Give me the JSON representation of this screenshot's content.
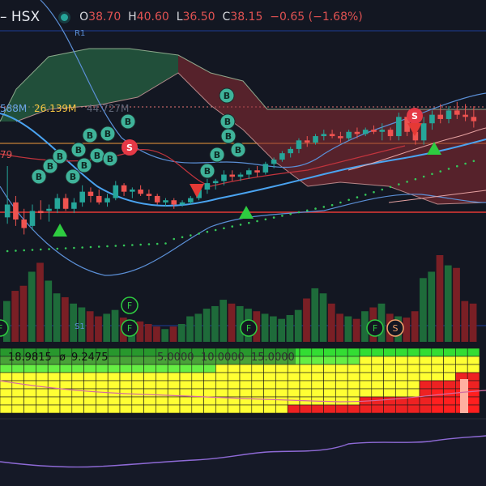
{
  "header": {
    "symbol": "– HSX",
    "o_key": "O",
    "o_val": "38.70",
    "h_key": "H",
    "h_val": "40.60",
    "l_key": "L",
    "l_val": "36.50",
    "c_key": "C",
    "c_val": "38.15",
    "change": "−0.65 (−1.68%)"
  },
  "labels": {
    "r1": "R1",
    "s1": "S1",
    "vol_a": "588M",
    "vol_b": "26.139M",
    "vol_c": "44.727M",
    "side_79": "79"
  },
  "indicator": {
    "v1": "18.9815",
    "v2_prefix": "ø",
    "v2": "9.2475",
    "levels": [
      "5.0000",
      "10.0000",
      "15.0000"
    ]
  },
  "markers": {
    "buy": "B",
    "sell": "S",
    "f": "F"
  },
  "chart_data": {
    "type": "candlestick",
    "title": "– HSX",
    "ohlc": [
      [
        36.2,
        38.6,
        35.9,
        36.8
      ],
      [
        36.9,
        37.2,
        35.8,
        36.1
      ],
      [
        36.1,
        36.6,
        35.4,
        35.7
      ],
      [
        35.8,
        36.8,
        35.6,
        36.5
      ],
      [
        36.5,
        37.0,
        36.1,
        36.4
      ],
      [
        36.5,
        36.8,
        36.0,
        36.6
      ],
      [
        36.6,
        37.3,
        36.4,
        37.1
      ],
      [
        37.1,
        37.3,
        36.5,
        36.6
      ],
      [
        36.6,
        37.1,
        36.4,
        36.9
      ],
      [
        36.9,
        37.7,
        36.7,
        37.4
      ],
      [
        37.4,
        37.6,
        36.9,
        37.2
      ],
      [
        37.2,
        37.5,
        36.8,
        36.9
      ],
      [
        36.9,
        37.3,
        36.7,
        37.1
      ],
      [
        37.1,
        37.9,
        37.0,
        37.7
      ],
      [
        37.7,
        37.8,
        37.2,
        37.4
      ],
      [
        37.4,
        37.6,
        37.1,
        37.5
      ],
      [
        37.5,
        37.7,
        37.2,
        37.3
      ],
      [
        37.3,
        37.5,
        37.0,
        37.2
      ],
      [
        37.2,
        37.3,
        36.8,
        36.9
      ],
      [
        36.9,
        37.1,
        36.7,
        37.0
      ],
      [
        37.0,
        37.1,
        36.6,
        36.8
      ],
      [
        36.8,
        37.0,
        36.7,
        36.9
      ],
      [
        36.9,
        37.2,
        36.8,
        37.1
      ],
      [
        37.1,
        37.6,
        37.0,
        37.5
      ],
      [
        37.5,
        38.0,
        37.3,
        37.8
      ],
      [
        37.8,
        38.0,
        37.5,
        37.9
      ],
      [
        37.9,
        38.4,
        37.7,
        38.2
      ],
      [
        38.2,
        38.4,
        37.9,
        38.1
      ],
      [
        38.1,
        38.3,
        37.9,
        38.2
      ],
      [
        38.2,
        38.5,
        38.0,
        38.4
      ],
      [
        38.4,
        38.6,
        38.1,
        38.3
      ],
      [
        38.3,
        38.8,
        38.2,
        38.7
      ],
      [
        38.7,
        39.0,
        38.5,
        38.9
      ],
      [
        38.9,
        39.3,
        38.8,
        39.2
      ],
      [
        39.2,
        39.5,
        39.0,
        39.4
      ],
      [
        39.4,
        39.9,
        39.2,
        39.8
      ],
      [
        39.8,
        40.0,
        39.5,
        39.7
      ],
      [
        39.7,
        40.1,
        39.6,
        40.0
      ],
      [
        40.0,
        40.3,
        39.8,
        40.1
      ],
      [
        40.1,
        40.3,
        39.9,
        40.0
      ],
      [
        40.0,
        40.2,
        39.7,
        39.9
      ],
      [
        39.9,
        40.3,
        39.8,
        40.2
      ],
      [
        40.2,
        40.4,
        39.9,
        40.1
      ],
      [
        40.1,
        40.4,
        40.0,
        40.3
      ],
      [
        40.3,
        40.5,
        40.1,
        40.2
      ],
      [
        40.2,
        40.6,
        39.8,
        40.3
      ],
      [
        40.3,
        40.4,
        39.8,
        40.0
      ],
      [
        40.0,
        41.1,
        39.8,
        40.9
      ],
      [
        40.9,
        41.0,
        40.0,
        40.2
      ],
      [
        40.2,
        40.7,
        39.6,
        39.8
      ],
      [
        39.8,
        40.9,
        39.6,
        40.6
      ],
      [
        40.6,
        41.2,
        40.3,
        41.0
      ],
      [
        41.0,
        41.5,
        40.6,
        40.8
      ],
      [
        40.8,
        41.4,
        40.6,
        41.2
      ],
      [
        41.2,
        41.6,
        40.8,
        41.0
      ],
      [
        41.0,
        41.5,
        40.7,
        40.9
      ],
      [
        40.9,
        41.4,
        40.4,
        40.7
      ]
    ],
    "volume": [
      32,
      40,
      44,
      55,
      62,
      48,
      38,
      35,
      30,
      27,
      24,
      20,
      22,
      25,
      19,
      17,
      16,
      14,
      12,
      10,
      12,
      14,
      20,
      22,
      26,
      28,
      33,
      30,
      28,
      26,
      24,
      22,
      20,
      18,
      21,
      25,
      34,
      42,
      38,
      30,
      22,
      20,
      18,
      24,
      27,
      30,
      22,
      20,
      19,
      24,
      50,
      55,
      68,
      60,
      58,
      32,
      30
    ],
    "sell_markers": [
      12,
      21,
      45
    ],
    "buy_triangles": [
      6,
      27,
      49
    ],
    "ylim": [
      35.0,
      42.2
    ]
  }
}
